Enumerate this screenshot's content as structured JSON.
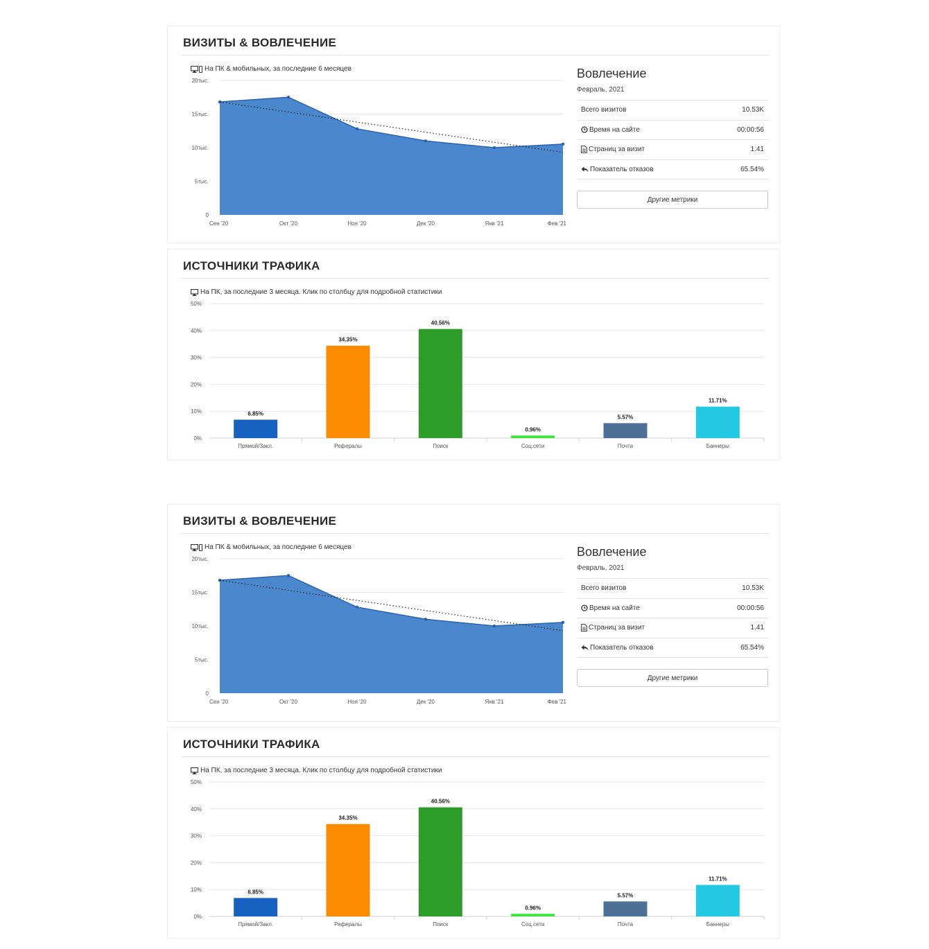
{
  "screens": [
    {
      "visits": {
        "title": "ВИЗИТЫ & ВОВЛЕЧЕНИЕ",
        "subtitle": "На ПК & мобильных, за последние 6 месяцев",
        "engagement": {
          "title": "Вовлечение",
          "date": "Февраль, 2021",
          "rows": [
            {
              "label": "Всего визитов",
              "value": "10.53K",
              "icon": ""
            },
            {
              "label": "Время на сайте",
              "value": "00:00:56",
              "icon": "clock-icon"
            },
            {
              "label": "Страниц за визит",
              "value": "1.41",
              "icon": "document-icon"
            },
            {
              "label": "Показатель отказов",
              "value": "65.54%",
              "icon": "reply-icon"
            }
          ],
          "button": "Другие метрики"
        }
      },
      "traffic": {
        "title": "ИСТОЧНИКИ ТРАФИКА",
        "subtitle": "На ПК, за последние 3 месяца. Клик по столбцу для подробной статистики"
      }
    },
    {
      "visits": {
        "title": "ВИЗИТЫ & ВОВЛЕЧЕНИЕ",
        "subtitle": "На ПК & мобильных, за последние 6 месяцев",
        "engagement": {
          "title": "Вовлечение",
          "date": "Февраль, 2021",
          "rows": [
            {
              "label": "Всего визитов",
              "value": "10.53K",
              "icon": ""
            },
            {
              "label": "Время на сайте",
              "value": "00:00:56",
              "icon": "clock-icon"
            },
            {
              "label": "Страниц за визит",
              "value": "1.41",
              "icon": "document-icon"
            },
            {
              "label": "Показатель отказов",
              "value": "65.54%",
              "icon": "reply-icon"
            }
          ],
          "button": "Другие метрики"
        }
      },
      "traffic": {
        "title": "ИСТОЧНИКИ ТРАФИКА",
        "subtitle": "На ПК, за последние 3 месяца. Клик по столбцу для подробной статистики"
      }
    }
  ],
  "chart_data": [
    {
      "type": "area",
      "categories": [
        "Сен '20",
        "Окт '20",
        "Ноя '20",
        "Дек '20",
        "Янв '21",
        "Фев '21"
      ],
      "series": [
        {
          "values": [
            16800,
            17500,
            12800,
            11000,
            10000,
            10530
          ],
          "color": "#4a87cd"
        }
      ],
      "trendline": {
        "style": "dotted",
        "from": 16800,
        "to": 9300
      },
      "yticks": [
        "0",
        "5тыс.",
        "10тыс.",
        "15тыс.",
        "20тыс."
      ],
      "ylim": [
        0,
        20000
      ],
      "legend": "none"
    },
    {
      "type": "bar",
      "categories": [
        "Прямой/Закл.",
        "Рефералы",
        "Поиск",
        "Соц.сети",
        "Почта",
        "Баннеры"
      ],
      "values": [
        6.85,
        34.35,
        40.56,
        0.96,
        5.57,
        11.71
      ],
      "data_labels": [
        "6.85%",
        "34.35%",
        "40.56%",
        "0.96%",
        "5.57%",
        "11.71%"
      ],
      "colors": [
        "#1761c1",
        "#fb8c00",
        "#2e9c29",
        "#3be63a",
        "#4f7096",
        "#23c9e3"
      ],
      "yticks": [
        "0%",
        "10%",
        "20%",
        "30%",
        "40%",
        "50%"
      ],
      "ylim": [
        0,
        50
      ],
      "legend": "none"
    }
  ]
}
